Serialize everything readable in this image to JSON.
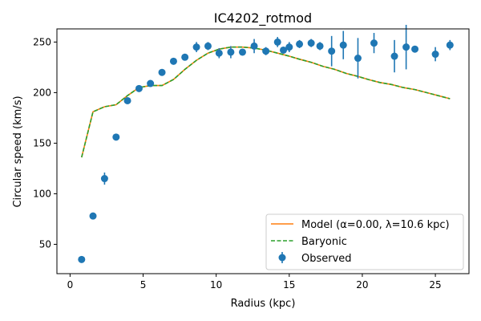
{
  "chart_data": {
    "type": "line",
    "title": "IC4202_rotmod",
    "xlabel": "Radius (kpc)",
    "ylabel": "Circular speed (km/s)",
    "xlim": [
      -0.9,
      27.3
    ],
    "ylim": [
      21,
      263
    ],
    "xticks": [
      0,
      5,
      10,
      15,
      20,
      25
    ],
    "yticks": [
      50,
      100,
      150,
      200,
      250
    ],
    "grid": false,
    "legend_position": "lower-right",
    "series": [
      {
        "name": "Model (α=0.00, λ=10.6 kpc)",
        "kind": "line",
        "color": "#ff7f0e",
        "x": [
          0.79,
          1.57,
          2.36,
          3.15,
          3.93,
          4.72,
          5.5,
          6.29,
          7.08,
          7.86,
          8.65,
          9.44,
          10.2,
          11.0,
          11.8,
          12.6,
          13.4,
          14.2,
          15.0,
          15.7,
          16.5,
          17.3,
          18.1,
          18.9,
          19.7,
          20.4,
          21.2,
          22.0,
          22.8,
          23.6,
          24.4,
          25.2,
          26.0
        ],
        "y": [
          136,
          181,
          186,
          188,
          197,
          205,
          207,
          207,
          213,
          223,
          232,
          239,
          243,
          245,
          245,
          244,
          242,
          239,
          236,
          233,
          230,
          226,
          223,
          219,
          216,
          213,
          210,
          208,
          205,
          203,
          200,
          197,
          194
        ]
      },
      {
        "name": "Baryonic",
        "kind": "dashed",
        "color": "#2ca02c",
        "x": [
          0.79,
          1.57,
          2.36,
          3.15,
          3.93,
          4.72,
          5.5,
          6.29,
          7.08,
          7.86,
          8.65,
          9.44,
          10.2,
          11.0,
          11.8,
          12.6,
          13.4,
          14.2,
          15.0,
          15.7,
          16.5,
          17.3,
          18.1,
          18.9,
          19.7,
          20.4,
          21.2,
          22.0,
          22.8,
          23.6,
          24.4,
          25.2,
          26.0
        ],
        "y": [
          136,
          181,
          186,
          188,
          197,
          205,
          207,
          207,
          213,
          223,
          232,
          239,
          243,
          245,
          245,
          244,
          242,
          239,
          236,
          233,
          230,
          226,
          223,
          219,
          216,
          213,
          210,
          208,
          205,
          203,
          200,
          197,
          194
        ]
      },
      {
        "name": "Observed",
        "kind": "errorbar",
        "color": "#1f77b4",
        "x": [
          0.79,
          1.57,
          2.36,
          3.15,
          3.93,
          4.72,
          5.5,
          6.29,
          7.08,
          7.86,
          8.65,
          9.44,
          10.2,
          11.0,
          11.8,
          12.6,
          13.4,
          14.2,
          14.6,
          15.0,
          15.7,
          16.5,
          17.1,
          17.9,
          18.7,
          19.7,
          20.8,
          22.2,
          23.0,
          23.6,
          25.0,
          26.0
        ],
        "y": [
          35,
          78,
          115,
          156,
          192,
          204,
          209,
          220,
          231,
          235,
          245,
          246,
          239,
          240,
          240,
          246,
          241,
          250,
          242,
          245,
          248,
          249,
          246,
          241,
          247,
          234,
          249,
          236,
          245,
          243,
          238,
          247
        ],
        "yerr": [
          2,
          3,
          6,
          2,
          2,
          2,
          2,
          2,
          2,
          2,
          5,
          4,
          5,
          6,
          3,
          7,
          4,
          5,
          3,
          5,
          4,
          4,
          4,
          15,
          14,
          20,
          10,
          16,
          22,
          3,
          7,
          5
        ]
      }
    ]
  }
}
